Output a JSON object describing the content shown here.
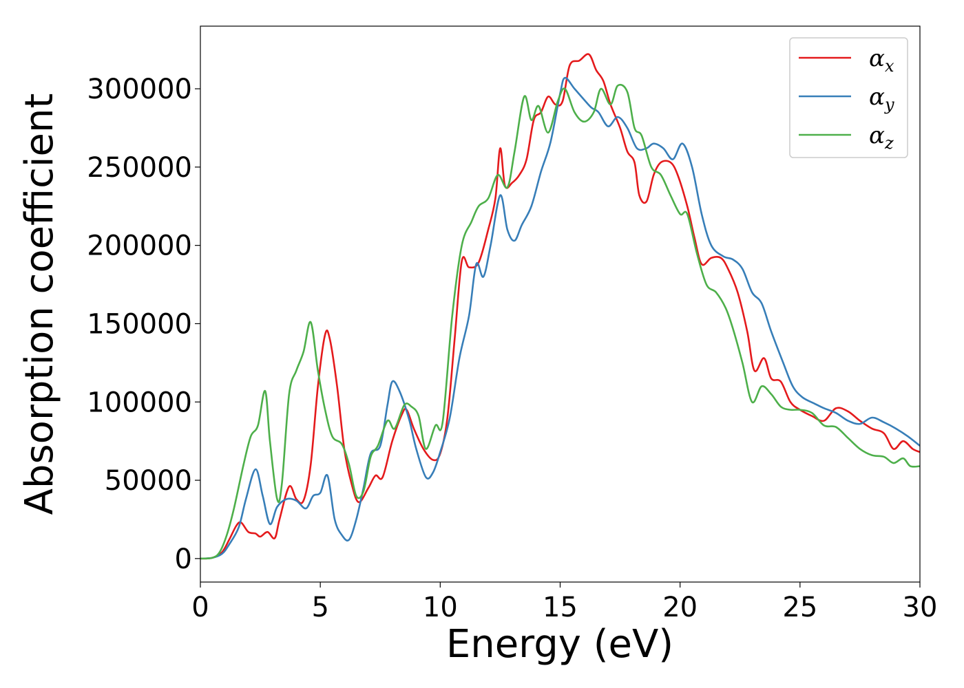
{
  "chart_data": {
    "type": "line",
    "title": "",
    "xlabel": "Energy (eV)",
    "ylabel": "Absorption coefficient",
    "xlim": [
      0,
      30
    ],
    "ylim": [
      -15000,
      340000
    ],
    "xticks": [
      0,
      5,
      10,
      15,
      20,
      25,
      30
    ],
    "yticks": [
      0,
      50000,
      100000,
      150000,
      200000,
      250000,
      300000
    ],
    "grid": false,
    "legend_position": "top-right",
    "series": [
      {
        "name": "αx",
        "symbol": "α",
        "subscript": "x",
        "color": "#e41a1c",
        "points": [
          [
            0,
            0
          ],
          [
            0.5,
            500
          ],
          [
            0.9,
            4000
          ],
          [
            1.2,
            12000
          ],
          [
            1.5,
            21000
          ],
          [
            1.7,
            23000
          ],
          [
            2.0,
            17000
          ],
          [
            2.3,
            16000
          ],
          [
            2.5,
            14000
          ],
          [
            2.8,
            17000
          ],
          [
            3.1,
            13000
          ],
          [
            3.3,
            25000
          ],
          [
            3.7,
            46000
          ],
          [
            4.0,
            38000
          ],
          [
            4.3,
            37000
          ],
          [
            4.6,
            60000
          ],
          [
            4.9,
            110000
          ],
          [
            5.2,
            143000
          ],
          [
            5.4,
            140000
          ],
          [
            5.7,
            110000
          ],
          [
            6.0,
            70000
          ],
          [
            6.3,
            48000
          ],
          [
            6.6,
            36000
          ],
          [
            7.0,
            45000
          ],
          [
            7.3,
            53000
          ],
          [
            7.6,
            52000
          ],
          [
            8.0,
            75000
          ],
          [
            8.4,
            92000
          ],
          [
            8.6,
            95000
          ],
          [
            8.9,
            83000
          ],
          [
            9.3,
            70000
          ],
          [
            9.7,
            63000
          ],
          [
            10.0,
            67000
          ],
          [
            10.3,
            90000
          ],
          [
            10.6,
            140000
          ],
          [
            10.9,
            190000
          ],
          [
            11.2,
            186000
          ],
          [
            11.6,
            189000
          ],
          [
            12.0,
            210000
          ],
          [
            12.3,
            230000
          ],
          [
            12.5,
            262000
          ],
          [
            12.7,
            238000
          ],
          [
            13.0,
            240000
          ],
          [
            13.3,
            245000
          ],
          [
            13.6,
            255000
          ],
          [
            13.9,
            280000
          ],
          [
            14.2,
            285000
          ],
          [
            14.5,
            295000
          ],
          [
            14.8,
            290000
          ],
          [
            15.1,
            292000
          ],
          [
            15.4,
            315000
          ],
          [
            15.8,
            318000
          ],
          [
            16.2,
            322000
          ],
          [
            16.5,
            312000
          ],
          [
            16.8,
            305000
          ],
          [
            17.1,
            290000
          ],
          [
            17.5,
            275000
          ],
          [
            17.8,
            260000
          ],
          [
            18.1,
            253000
          ],
          [
            18.3,
            232000
          ],
          [
            18.6,
            228000
          ],
          [
            18.9,
            245000
          ],
          [
            19.2,
            253000
          ],
          [
            19.6,
            253000
          ],
          [
            19.9,
            245000
          ],
          [
            20.3,
            225000
          ],
          [
            20.6,
            205000
          ],
          [
            20.9,
            188000
          ],
          [
            21.3,
            192000
          ],
          [
            21.7,
            192000
          ],
          [
            22.0,
            185000
          ],
          [
            22.4,
            170000
          ],
          [
            22.8,
            145000
          ],
          [
            23.1,
            120000
          ],
          [
            23.5,
            128000
          ],
          [
            23.8,
            115000
          ],
          [
            24.2,
            113000
          ],
          [
            24.6,
            100000
          ],
          [
            25.0,
            95000
          ],
          [
            25.5,
            91000
          ],
          [
            26.0,
            88000
          ],
          [
            26.5,
            96000
          ],
          [
            27.0,
            94000
          ],
          [
            27.5,
            88000
          ],
          [
            28.0,
            83000
          ],
          [
            28.5,
            80000
          ],
          [
            28.9,
            70000
          ],
          [
            29.3,
            75000
          ],
          [
            29.7,
            70000
          ],
          [
            30.0,
            68000
          ]
        ]
      },
      {
        "name": "αy",
        "symbol": "α",
        "subscript": "y",
        "color": "#377eb8",
        "points": [
          [
            0,
            0
          ],
          [
            0.5,
            500
          ],
          [
            0.9,
            3000
          ],
          [
            1.2,
            9000
          ],
          [
            1.6,
            20000
          ],
          [
            1.9,
            38000
          ],
          [
            2.3,
            57000
          ],
          [
            2.6,
            40000
          ],
          [
            2.9,
            22000
          ],
          [
            3.2,
            33000
          ],
          [
            3.6,
            38000
          ],
          [
            4.0,
            37000
          ],
          [
            4.4,
            32000
          ],
          [
            4.7,
            40000
          ],
          [
            5.0,
            42000
          ],
          [
            5.3,
            53000
          ],
          [
            5.6,
            25000
          ],
          [
            5.9,
            15000
          ],
          [
            6.2,
            12000
          ],
          [
            6.5,
            25000
          ],
          [
            6.8,
            45000
          ],
          [
            7.1,
            67000
          ],
          [
            7.5,
            72000
          ],
          [
            7.8,
            98000
          ],
          [
            8.0,
            113000
          ],
          [
            8.3,
            107000
          ],
          [
            8.7,
            89000
          ],
          [
            9.0,
            70000
          ],
          [
            9.4,
            52000
          ],
          [
            9.7,
            55000
          ],
          [
            10.0,
            68000
          ],
          [
            10.4,
            90000
          ],
          [
            10.8,
            128000
          ],
          [
            11.2,
            155000
          ],
          [
            11.5,
            188000
          ],
          [
            11.8,
            180000
          ],
          [
            12.1,
            200000
          ],
          [
            12.5,
            232000
          ],
          [
            12.8,
            210000
          ],
          [
            13.1,
            203000
          ],
          [
            13.4,
            213000
          ],
          [
            13.8,
            225000
          ],
          [
            14.2,
            247000
          ],
          [
            14.6,
            266000
          ],
          [
            15.0,
            297000
          ],
          [
            15.2,
            307000
          ],
          [
            15.6,
            300000
          ],
          [
            16.0,
            293000
          ],
          [
            16.3,
            288000
          ],
          [
            16.6,
            285000
          ],
          [
            17.0,
            276000
          ],
          [
            17.4,
            282000
          ],
          [
            17.8,
            275000
          ],
          [
            18.2,
            262000
          ],
          [
            18.6,
            262000
          ],
          [
            18.9,
            265000
          ],
          [
            19.3,
            262000
          ],
          [
            19.7,
            255000
          ],
          [
            20.1,
            265000
          ],
          [
            20.5,
            250000
          ],
          [
            20.9,
            220000
          ],
          [
            21.3,
            200000
          ],
          [
            21.8,
            193000
          ],
          [
            22.2,
            191000
          ],
          [
            22.6,
            185000
          ],
          [
            23.0,
            170000
          ],
          [
            23.4,
            163000
          ],
          [
            23.8,
            145000
          ],
          [
            24.3,
            125000
          ],
          [
            24.7,
            110000
          ],
          [
            25.1,
            103000
          ],
          [
            25.6,
            99000
          ],
          [
            26.0,
            96000
          ],
          [
            26.5,
            93000
          ],
          [
            27.0,
            88000
          ],
          [
            27.5,
            86000
          ],
          [
            28.0,
            90000
          ],
          [
            28.5,
            87000
          ],
          [
            29.0,
            83000
          ],
          [
            29.5,
            78000
          ],
          [
            30.0,
            72000
          ]
        ]
      },
      {
        "name": "αz",
        "symbol": "α",
        "subscript": "z",
        "color": "#4daf4a",
        "points": [
          [
            0,
            0
          ],
          [
            0.5,
            500
          ],
          [
            0.8,
            4000
          ],
          [
            1.1,
            15000
          ],
          [
            1.4,
            32000
          ],
          [
            1.8,
            60000
          ],
          [
            2.1,
            78000
          ],
          [
            2.4,
            85000
          ],
          [
            2.7,
            107000
          ],
          [
            2.9,
            75000
          ],
          [
            3.2,
            38000
          ],
          [
            3.4,
            48000
          ],
          [
            3.7,
            105000
          ],
          [
            4.0,
            120000
          ],
          [
            4.3,
            132000
          ],
          [
            4.6,
            151000
          ],
          [
            4.9,
            120000
          ],
          [
            5.2,
            95000
          ],
          [
            5.5,
            78000
          ],
          [
            5.9,
            73000
          ],
          [
            6.2,
            60000
          ],
          [
            6.5,
            40000
          ],
          [
            6.8,
            43000
          ],
          [
            7.1,
            65000
          ],
          [
            7.4,
            72000
          ],
          [
            7.8,
            88000
          ],
          [
            8.1,
            83000
          ],
          [
            8.5,
            98000
          ],
          [
            8.8,
            97000
          ],
          [
            9.1,
            91000
          ],
          [
            9.4,
            70000
          ],
          [
            9.8,
            85000
          ],
          [
            10.1,
            87000
          ],
          [
            10.5,
            155000
          ],
          [
            10.9,
            200000
          ],
          [
            11.3,
            215000
          ],
          [
            11.6,
            225000
          ],
          [
            12.0,
            230000
          ],
          [
            12.4,
            245000
          ],
          [
            12.8,
            237000
          ],
          [
            13.1,
            260000
          ],
          [
            13.5,
            295000
          ],
          [
            13.8,
            280000
          ],
          [
            14.1,
            289000
          ],
          [
            14.5,
            272000
          ],
          [
            14.9,
            292000
          ],
          [
            15.2,
            300000
          ],
          [
            15.6,
            285000
          ],
          [
            16.0,
            279000
          ],
          [
            16.4,
            285000
          ],
          [
            16.7,
            300000
          ],
          [
            17.1,
            290000
          ],
          [
            17.4,
            302000
          ],
          [
            17.8,
            298000
          ],
          [
            18.1,
            275000
          ],
          [
            18.4,
            270000
          ],
          [
            18.8,
            250000
          ],
          [
            19.2,
            245000
          ],
          [
            19.6,
            232000
          ],
          [
            20.0,
            220000
          ],
          [
            20.3,
            220000
          ],
          [
            20.7,
            195000
          ],
          [
            21.1,
            175000
          ],
          [
            21.5,
            170000
          ],
          [
            21.9,
            160000
          ],
          [
            22.2,
            147000
          ],
          [
            22.6,
            125000
          ],
          [
            23.0,
            100000
          ],
          [
            23.4,
            110000
          ],
          [
            23.8,
            105000
          ],
          [
            24.2,
            97000
          ],
          [
            24.6,
            95000
          ],
          [
            25.0,
            95000
          ],
          [
            25.5,
            93000
          ],
          [
            26.0,
            85000
          ],
          [
            26.5,
            84000
          ],
          [
            27.0,
            77000
          ],
          [
            27.5,
            70000
          ],
          [
            28.0,
            66000
          ],
          [
            28.5,
            65000
          ],
          [
            28.9,
            61000
          ],
          [
            29.3,
            64000
          ],
          [
            29.6,
            59000
          ],
          [
            30.0,
            59000
          ]
        ]
      }
    ]
  }
}
